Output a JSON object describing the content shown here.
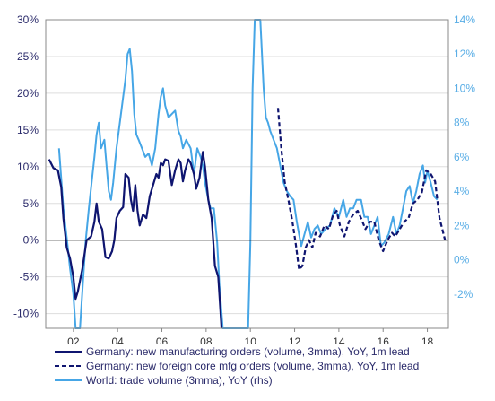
{
  "chart_data": {
    "type": "line",
    "title": "",
    "xlabel": "",
    "ylabel_left": "",
    "ylabel_right": "",
    "x_ticks": [
      "02",
      "04",
      "06",
      "08",
      "10",
      "12",
      "14",
      "16",
      "18"
    ],
    "ylim_left": [
      -12,
      30
    ],
    "ylim_right": [
      -4,
      14
    ],
    "y_ticks_left": [
      "-10%",
      "-5%",
      "0%",
      "5%",
      "10%",
      "15%",
      "20%",
      "25%",
      "30%"
    ],
    "y_ticks_right": [
      "-2%",
      "0%",
      "2%",
      "4%",
      "6%",
      "8%",
      "10%",
      "12%",
      "14%"
    ],
    "grid": true,
    "legend_position": "bottom",
    "colors": {
      "orders": "#0f1570",
      "foreign": "#0f1570",
      "trade": "#46a6e6",
      "zero_line": "#000000",
      "grid": "#dddddd"
    },
    "series": [
      {
        "name": "Germany: new manufacturing orders (volume, 3mma), YoY, 1m lead",
        "axis": "left",
        "style": "solid",
        "points": [
          [
            2000.9,
            11
          ],
          [
            2001.1,
            9.8
          ],
          [
            2001.3,
            9.5
          ],
          [
            2001.45,
            7.2
          ],
          [
            2001.55,
            3
          ],
          [
            2001.7,
            -1
          ],
          [
            2001.85,
            -2.5
          ],
          [
            2002.0,
            -5
          ],
          [
            2002.1,
            -8
          ],
          [
            2002.2,
            -7
          ],
          [
            2002.4,
            -4
          ],
          [
            2002.6,
            0
          ],
          [
            2002.8,
            0.5
          ],
          [
            2002.95,
            2.5
          ],
          [
            2003.05,
            5
          ],
          [
            2003.15,
            2.5
          ],
          [
            2003.3,
            1.5
          ],
          [
            2003.45,
            -2.3
          ],
          [
            2003.6,
            -2.5
          ],
          [
            2003.75,
            -1.5
          ],
          [
            2003.85,
            0
          ],
          [
            2003.95,
            3
          ],
          [
            2004.1,
            4
          ],
          [
            2004.25,
            4.5
          ],
          [
            2004.35,
            9
          ],
          [
            2004.5,
            8.5
          ],
          [
            2004.6,
            5.5
          ],
          [
            2004.7,
            4
          ],
          [
            2004.8,
            7.5
          ],
          [
            2004.9,
            4
          ],
          [
            2005.0,
            2
          ],
          [
            2005.15,
            3.5
          ],
          [
            2005.3,
            3
          ],
          [
            2005.45,
            6
          ],
          [
            2005.6,
            7.5
          ],
          [
            2005.75,
            9
          ],
          [
            2005.85,
            8.5
          ],
          [
            2005.95,
            10.5
          ],
          [
            2006.05,
            10.2
          ],
          [
            2006.15,
            11
          ],
          [
            2006.3,
            10.8
          ],
          [
            2006.45,
            7.5
          ],
          [
            2006.6,
            9.5
          ],
          [
            2006.75,
            11
          ],
          [
            2006.85,
            10.5
          ],
          [
            2006.95,
            8
          ],
          [
            2007.05,
            9.5
          ],
          [
            2007.2,
            11
          ],
          [
            2007.3,
            10.5
          ],
          [
            2007.45,
            9
          ],
          [
            2007.55,
            7
          ],
          [
            2007.7,
            8.5
          ],
          [
            2007.85,
            12
          ],
          [
            2007.95,
            10
          ],
          [
            2008.1,
            5.5
          ],
          [
            2008.25,
            3
          ],
          [
            2008.4,
            -3.5
          ],
          [
            2008.55,
            -5
          ],
          [
            2008.7,
            -12
          ]
        ]
      },
      {
        "name": "Germany: new foreign core mfg orders (volume, 3mma), YoY, 1m lead",
        "axis": "left",
        "style": "dashed",
        "points": [
          [
            2011.25,
            18
          ],
          [
            2011.4,
            12.5
          ],
          [
            2011.55,
            8
          ],
          [
            2011.75,
            5
          ],
          [
            2011.9,
            2.5
          ],
          [
            2012.05,
            -0.5
          ],
          [
            2012.2,
            -4
          ],
          [
            2012.35,
            -3.5
          ],
          [
            2012.5,
            -1
          ],
          [
            2012.65,
            0
          ],
          [
            2012.8,
            -1
          ],
          [
            2012.95,
            1
          ],
          [
            2013.15,
            0.5
          ],
          [
            2013.35,
            2
          ],
          [
            2013.55,
            1.5
          ],
          [
            2013.75,
            3.5
          ],
          [
            2013.9,
            4
          ],
          [
            2014.05,
            2
          ],
          [
            2014.25,
            0.5
          ],
          [
            2014.45,
            2.5
          ],
          [
            2014.65,
            3.5
          ],
          [
            2014.85,
            4
          ],
          [
            2015.0,
            3
          ],
          [
            2015.2,
            1.5
          ],
          [
            2015.4,
            2.5
          ],
          [
            2015.6,
            2.5
          ],
          [
            2015.8,
            0
          ],
          [
            2016.0,
            -1.5
          ],
          [
            2016.2,
            0
          ],
          [
            2016.4,
            1
          ],
          [
            2016.55,
            0.5
          ],
          [
            2016.75,
            1.5
          ],
          [
            2016.95,
            2.5
          ],
          [
            2017.15,
            3
          ],
          [
            2017.35,
            5
          ],
          [
            2017.55,
            5.5
          ],
          [
            2017.75,
            6.5
          ],
          [
            2017.95,
            9.5
          ],
          [
            2018.15,
            9
          ],
          [
            2018.35,
            8
          ],
          [
            2018.55,
            3
          ],
          [
            2018.8,
            0
          ]
        ]
      },
      {
        "name": "World: trade volume (3mma), YoY (rhs)",
        "axis": "right",
        "style": "solid",
        "points": [
          [
            2001.35,
            6.5
          ],
          [
            2001.55,
            3
          ],
          [
            2001.7,
            1.3
          ],
          [
            2001.85,
            -0.5
          ],
          [
            2002.0,
            -2
          ],
          [
            2002.1,
            -4
          ],
          [
            2002.2,
            -5
          ],
          [
            2002.3,
            -6
          ],
          [
            2002.45,
            -1
          ],
          [
            2002.55,
            1
          ],
          [
            2002.7,
            3
          ],
          [
            2002.85,
            4.8
          ],
          [
            2002.95,
            6
          ],
          [
            2003.05,
            7.3
          ],
          [
            2003.15,
            8
          ],
          [
            2003.25,
            6.5
          ],
          [
            2003.4,
            7
          ],
          [
            2003.5,
            5.5
          ],
          [
            2003.6,
            4
          ],
          [
            2003.7,
            3.5
          ],
          [
            2003.8,
            4.5
          ],
          [
            2003.95,
            6.5
          ],
          [
            2004.05,
            7.5
          ],
          [
            2004.2,
            9
          ],
          [
            2004.35,
            10.5
          ],
          [
            2004.45,
            12
          ],
          [
            2004.55,
            12.3
          ],
          [
            2004.65,
            11
          ],
          [
            2004.75,
            8.5
          ],
          [
            2004.85,
            7.3
          ],
          [
            2004.95,
            7
          ],
          [
            2005.1,
            6.5
          ],
          [
            2005.25,
            6
          ],
          [
            2005.4,
            6.2
          ],
          [
            2005.55,
            5.5
          ],
          [
            2005.7,
            6.5
          ],
          [
            2005.85,
            8.5
          ],
          [
            2005.95,
            9.5
          ],
          [
            2006.05,
            10
          ],
          [
            2006.15,
            9
          ],
          [
            2006.3,
            8.3
          ],
          [
            2006.45,
            8.5
          ],
          [
            2006.6,
            8.7
          ],
          [
            2006.75,
            7.5
          ],
          [
            2006.85,
            7.2
          ],
          [
            2006.95,
            6.5
          ],
          [
            2007.1,
            7
          ],
          [
            2007.3,
            6.5
          ],
          [
            2007.45,
            5
          ],
          [
            2007.6,
            6.5
          ],
          [
            2007.75,
            6
          ],
          [
            2007.85,
            5.5
          ],
          [
            2007.95,
            4.5
          ],
          [
            2008.1,
            3.5
          ],
          [
            2008.2,
            3
          ],
          [
            2008.35,
            3
          ],
          [
            2008.5,
            1
          ],
          [
            2008.6,
            -1.5
          ],
          [
            2008.75,
            -4
          ],
          [
            2009.9,
            -4
          ],
          [
            2010.0,
            1
          ],
          [
            2010.1,
            10
          ],
          [
            2010.2,
            14
          ],
          [
            2010.3,
            14
          ],
          [
            2010.45,
            14
          ],
          [
            2010.6,
            10
          ],
          [
            2010.7,
            8.3
          ],
          [
            2010.8,
            8
          ],
          [
            2010.9,
            7.5
          ],
          [
            2011.05,
            7
          ],
          [
            2011.2,
            6.5
          ],
          [
            2011.35,
            5.5
          ],
          [
            2011.5,
            4.5
          ],
          [
            2011.65,
            4
          ],
          [
            2011.8,
            3.7
          ],
          [
            2011.95,
            3.5
          ],
          [
            2012.1,
            2.2
          ],
          [
            2012.3,
            0.8
          ],
          [
            2012.45,
            1.5
          ],
          [
            2012.6,
            2.2
          ],
          [
            2012.75,
            1.3
          ],
          [
            2012.9,
            1.8
          ],
          [
            2013.05,
            2
          ],
          [
            2013.2,
            1.5
          ],
          [
            2013.4,
            1.8
          ],
          [
            2013.6,
            2
          ],
          [
            2013.8,
            3
          ],
          [
            2014.0,
            2.5
          ],
          [
            2014.2,
            3.5
          ],
          [
            2014.35,
            2.5
          ],
          [
            2014.5,
            3
          ],
          [
            2014.65,
            3
          ],
          [
            2014.8,
            3.5
          ],
          [
            2015.0,
            3.5
          ],
          [
            2015.15,
            2.5
          ],
          [
            2015.3,
            2.5
          ],
          [
            2015.45,
            1.5
          ],
          [
            2015.6,
            2
          ],
          [
            2015.75,
            2.5
          ],
          [
            2015.9,
            0.8
          ],
          [
            2016.05,
            1
          ],
          [
            2016.25,
            1.5
          ],
          [
            2016.45,
            2.5
          ],
          [
            2016.6,
            1.5
          ],
          [
            2016.75,
            2
          ],
          [
            2016.9,
            3
          ],
          [
            2017.05,
            4
          ],
          [
            2017.2,
            4.3
          ],
          [
            2017.35,
            3.3
          ],
          [
            2017.5,
            4
          ],
          [
            2017.65,
            5
          ],
          [
            2017.8,
            5.5
          ],
          [
            2017.9,
            4.5
          ],
          [
            2018.0,
            5.2
          ],
          [
            2018.15,
            4.5
          ],
          [
            2018.3,
            3.7
          ],
          [
            2018.45,
            3.5
          ]
        ]
      }
    ]
  },
  "legend": {
    "items": [
      "Germany: new manufacturing orders (volume, 3mma), YoY, 1m lead",
      "Germany: new foreign core mfg orders (volume, 3mma), YoY, 1m lead",
      "World: trade volume (3mma), YoY (rhs)"
    ]
  }
}
